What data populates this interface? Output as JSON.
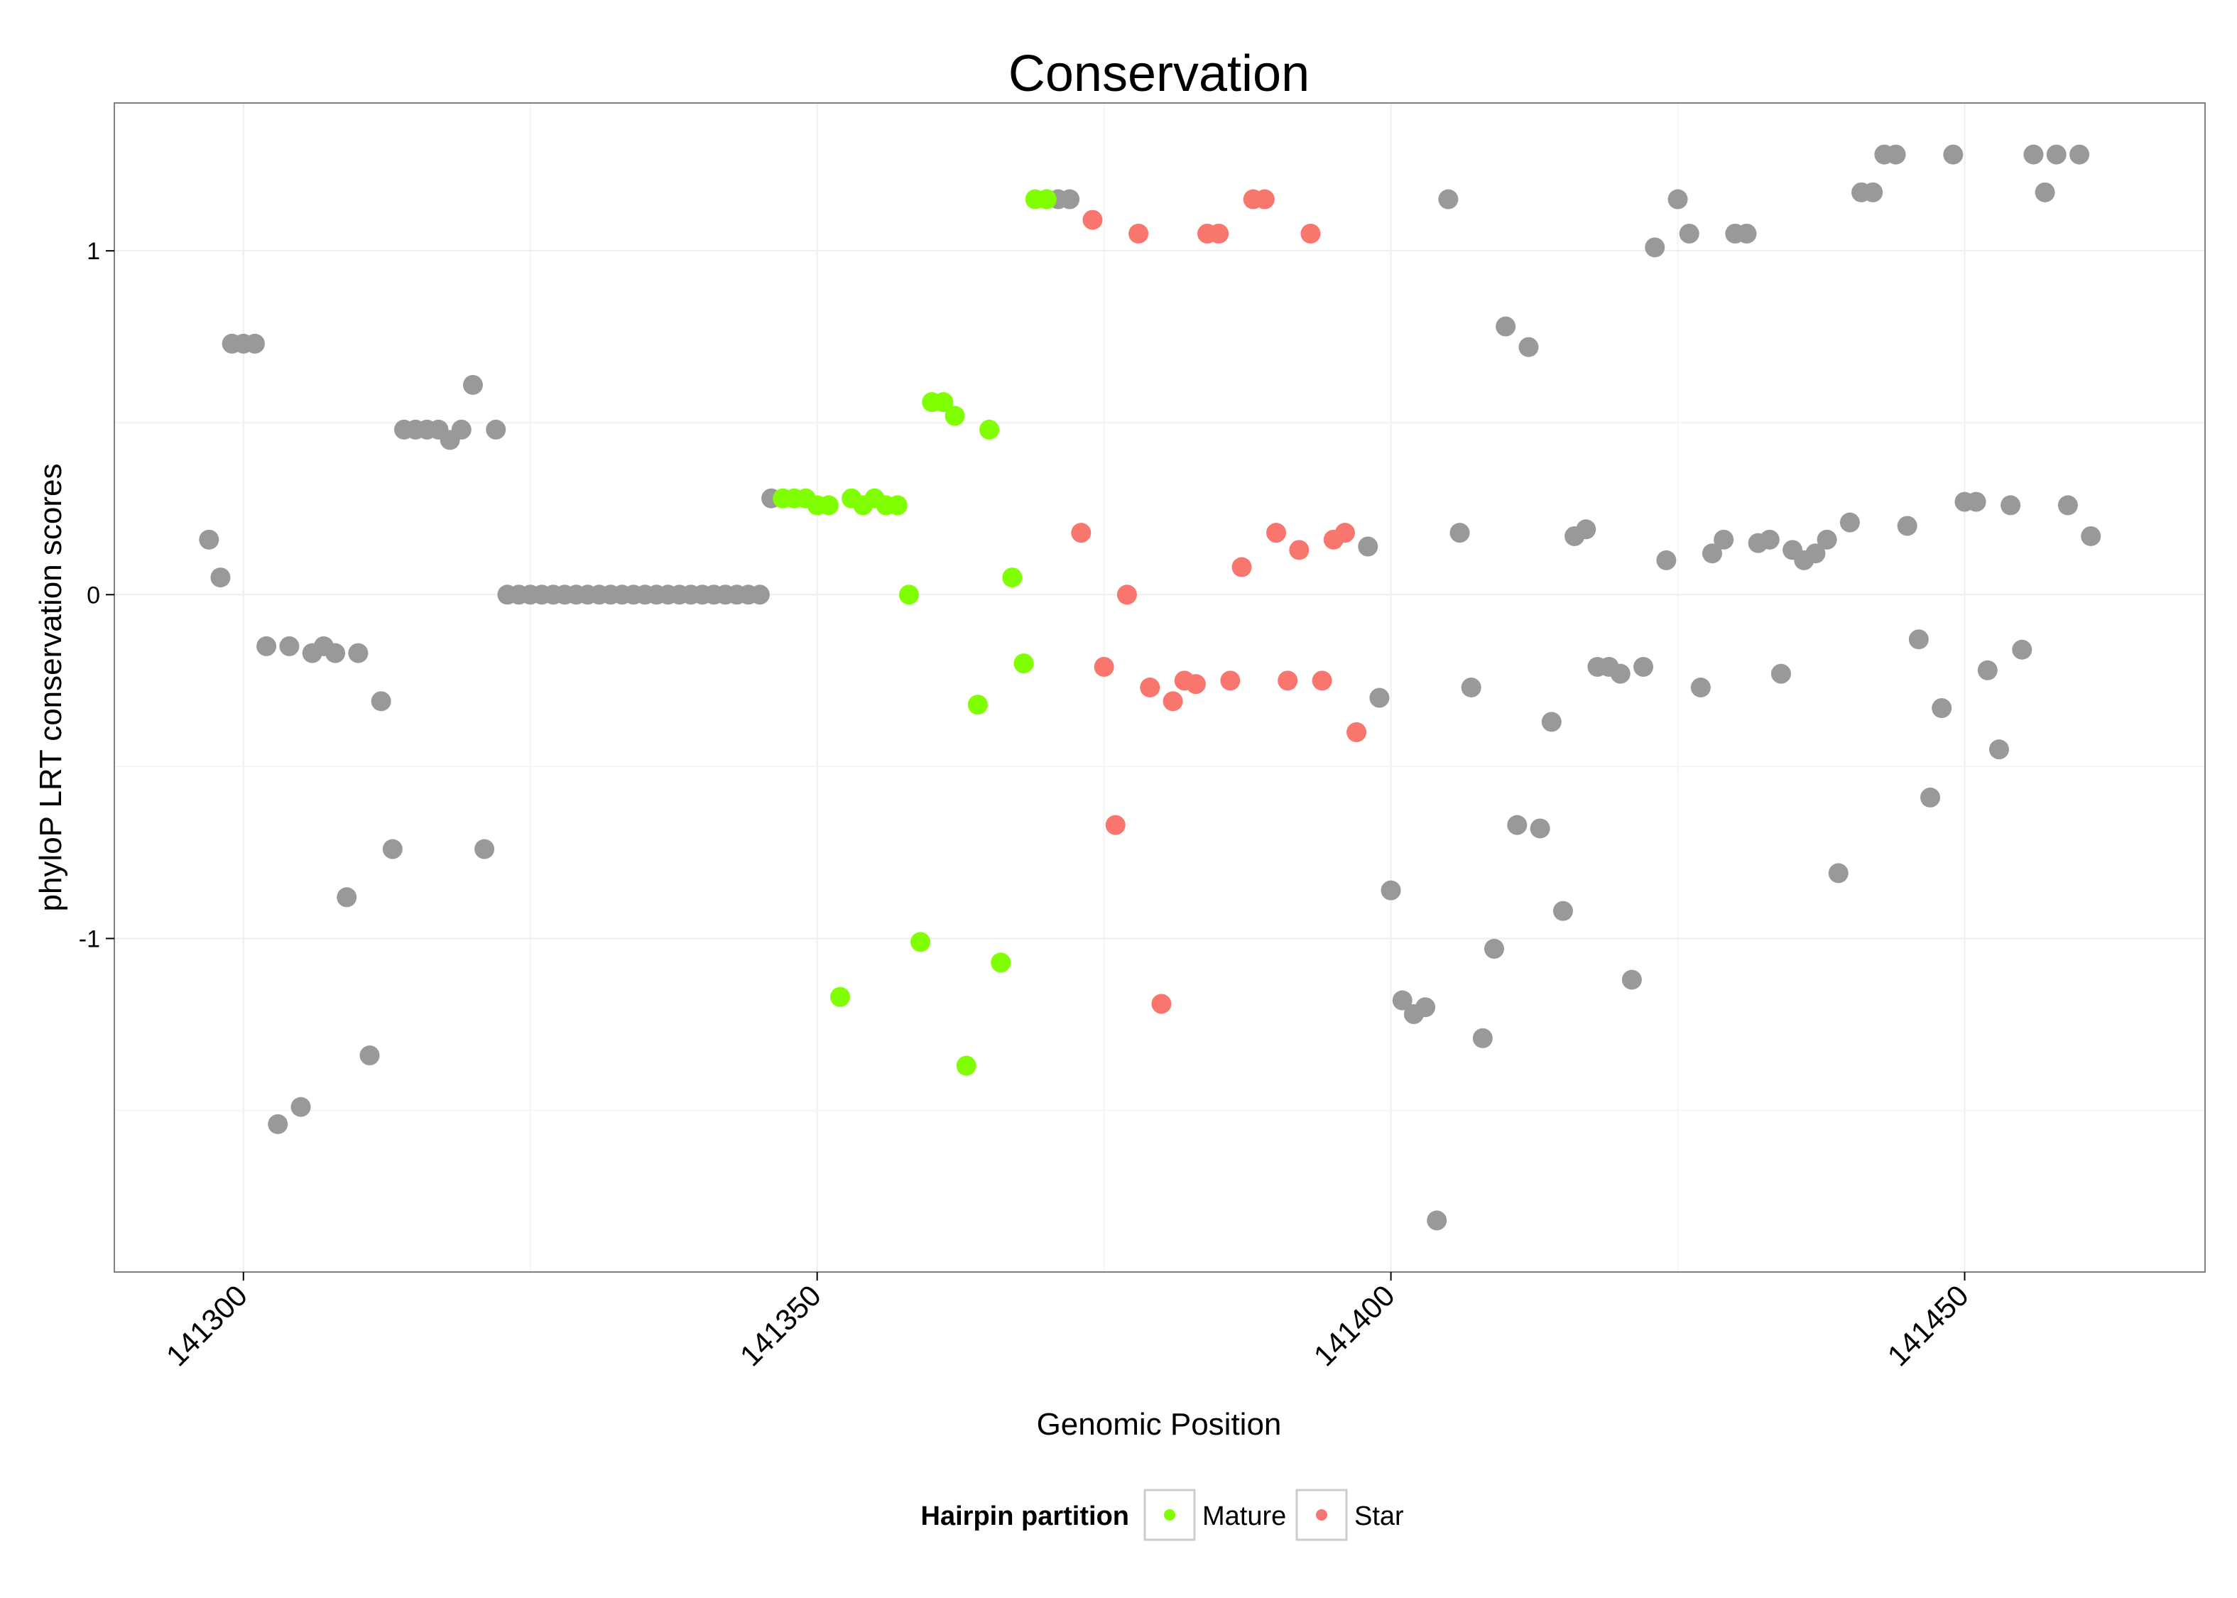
{
  "chart_data": {
    "type": "scatter",
    "title": "Conservation",
    "xlabel": "Genomic Position",
    "ylabel": "phyloP LRT conservation scores",
    "xlim": [
      141288.75,
      141470.95
    ],
    "ylim": [
      -1.97,
      1.43
    ],
    "x_ticks": [
      141300,
      141350,
      141400,
      141450
    ],
    "x_tick_labels": [
      "141300",
      "141350",
      "141400",
      "141450"
    ],
    "y_ticks": [
      -1,
      0,
      1
    ],
    "y_tick_labels": [
      "-1",
      "0",
      "1"
    ],
    "grid": true,
    "legend": {
      "title": "Hairpin partition",
      "position": "bottom",
      "entries": [
        {
          "label": "Mature",
          "color": "#7FFF00"
        },
        {
          "label": "Star",
          "color": "#F8766D"
        }
      ]
    },
    "colors": {
      "Mature": "#7FFF00",
      "Star": "#F8766D",
      "Other": "#999999"
    },
    "series": [
      {
        "name": "Other",
        "x": [
          141297,
          141298,
          141299,
          141300,
          141301,
          141302,
          141303,
          141304,
          141305,
          141306,
          141307,
          141308,
          141309,
          141310,
          141311,
          141312,
          141313,
          141314,
          141315,
          141316,
          141317,
          141318,
          141319,
          141320,
          141321,
          141322,
          141323,
          141324,
          141325,
          141326,
          141327,
          141328,
          141329,
          141330,
          141331,
          141332,
          141333,
          141334,
          141335,
          141336,
          141337,
          141338,
          141339,
          141340,
          141341,
          141342,
          141343,
          141344,
          141345,
          141346,
          141370,
          141371,
          141372,
          141398,
          141399,
          141400,
          141401,
          141402,
          141403,
          141404,
          141405,
          141406,
          141407,
          141408,
          141409,
          141410,
          141411,
          141412,
          141413,
          141414,
          141415,
          141416,
          141417,
          141418,
          141419,
          141420,
          141421,
          141422,
          141423,
          141424,
          141425,
          141426,
          141427,
          141428,
          141429,
          141430,
          141431,
          141432,
          141433,
          141434,
          141435,
          141436,
          141437,
          141438,
          141439,
          141440,
          141441,
          141442,
          141443,
          141444,
          141445,
          141446,
          141447,
          141448,
          141449,
          141450,
          141451,
          141452,
          141453,
          141454,
          141455,
          141456,
          141457,
          141458,
          141459,
          141460,
          141461
        ],
        "y": [
          0.16,
          0.05,
          0.73,
          0.73,
          0.73,
          -0.15,
          -1.54,
          -0.15,
          -1.49,
          -0.17,
          -0.15,
          -0.17,
          -0.88,
          -0.17,
          -1.34,
          -0.31,
          -0.74,
          0.48,
          0.48,
          0.48,
          0.48,
          0.45,
          0.48,
          0.61,
          -0.74,
          0.48,
          0,
          0,
          0,
          0,
          0,
          0,
          0,
          0,
          0,
          0,
          0,
          0,
          0,
          0,
          0,
          0,
          0,
          0,
          0,
          0,
          0,
          0,
          0,
          0.28,
          1.15,
          1.15,
          1.15,
          0.14,
          -0.3,
          -0.86,
          -1.18,
          -1.22,
          -1.2,
          -1.82,
          1.15,
          0.18,
          -0.27,
          -1.29,
          -1.03,
          0.78,
          -0.67,
          0.72,
          -0.68,
          -0.37,
          -0.92,
          0.17,
          0.19,
          -0.21,
          -0.21,
          -0.23,
          -1.12,
          -0.21,
          1.01,
          0.1,
          1.15,
          1.05,
          -0.27,
          0.12,
          0.16,
          1.05,
          1.05,
          0.15,
          0.16,
          -0.23,
          0.13,
          0.1,
          0.12,
          0.16,
          -0.81,
          0.21,
          1.17,
          1.17,
          1.28,
          1.28,
          0.2,
          -0.13,
          -0.59,
          -0.33,
          1.28,
          0.27,
          0.27,
          -0.22,
          -0.45,
          0.26,
          -0.16,
          1.28,
          1.17,
          1.28,
          0.26,
          1.28,
          0.17
        ]
      },
      {
        "name": "Mature",
        "x": [
          141347,
          141348,
          141349,
          141350,
          141351,
          141352,
          141353,
          141354,
          141355,
          141356,
          141357,
          141358,
          141359,
          141360,
          141361,
          141362,
          141363,
          141364,
          141365,
          141366,
          141367,
          141368,
          141369,
          141370
        ],
        "y": [
          0.28,
          0.28,
          0.28,
          0.26,
          0.26,
          -1.17,
          0.28,
          0.26,
          0.28,
          0.26,
          0.26,
          0,
          -1.01,
          0.56,
          0.56,
          0.52,
          -1.37,
          -0.32,
          0.48,
          -1.07,
          0.05,
          -0.2,
          1.15,
          1.15
        ]
      },
      {
        "name": "Star",
        "x": [
          141373,
          141374,
          141375,
          141376,
          141377,
          141378,
          141379,
          141380,
          141381,
          141382,
          141383,
          141384,
          141385,
          141386,
          141387,
          141388,
          141389,
          141390,
          141391,
          141392,
          141393,
          141394,
          141395,
          141396,
          141397
        ],
        "y": [
          0.18,
          1.09,
          -0.21,
          -0.67,
          0,
          1.05,
          -0.27,
          -1.19,
          -0.31,
          -0.25,
          -0.26,
          1.05,
          1.05,
          -0.25,
          0.08,
          1.15,
          1.15,
          0.18,
          -0.25,
          0.13,
          1.05,
          -0.25,
          0.16,
          0.18,
          -0.4
        ]
      }
    ]
  }
}
